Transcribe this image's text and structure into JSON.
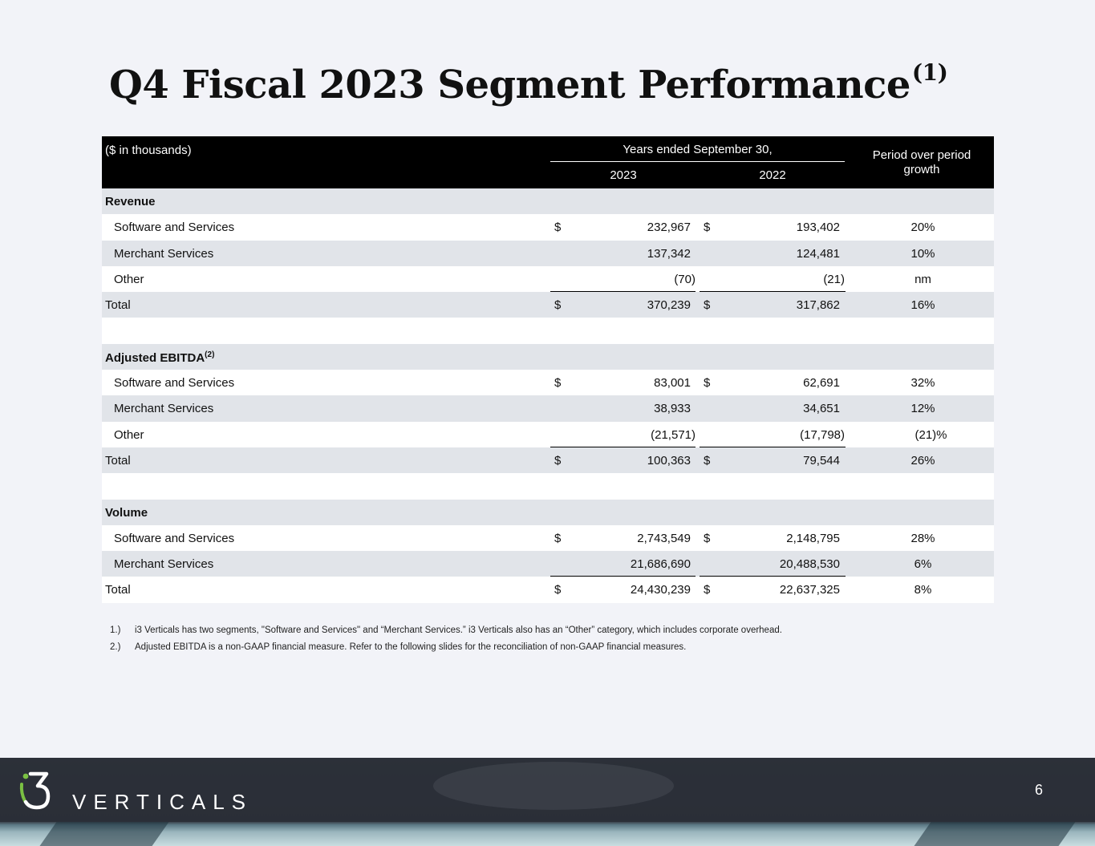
{
  "title": {
    "text": "Q4 Fiscal 2023 Segment Performance",
    "note_ref": "(1)"
  },
  "table": {
    "header": {
      "units": "($ in thousands)",
      "years_caption": "Years ended September 30,",
      "year_2023": "2023",
      "year_2022": "2022",
      "growth_line1": "Period over period",
      "growth_line2": "growth"
    },
    "revenue": {
      "heading": "Revenue",
      "software": {
        "label": "Software and Services",
        "cur": "$",
        "v2023": "232,967",
        "v2022": "193,402",
        "growth": "20%"
      },
      "merchant": {
        "label": "Merchant Services",
        "v2023": "137,342",
        "v2022": "124,481",
        "growth": "10%"
      },
      "other": {
        "label": "Other",
        "v2023": "(70)",
        "v2022": "(21)",
        "growth": "nm"
      },
      "total": {
        "label": "Total",
        "cur": "$",
        "v2023": "370,239",
        "v2022": "317,862",
        "growth": "16%"
      }
    },
    "ebitda": {
      "heading": "Adjusted EBITDA",
      "note_ref": "(2)",
      "software": {
        "label": "Software and Services",
        "cur": "$",
        "v2023": "83,001",
        "v2022": "62,691",
        "growth": "32%"
      },
      "merchant": {
        "label": "Merchant Services",
        "v2023": "38,933",
        "v2022": "34,651",
        "growth": "12%"
      },
      "other": {
        "label": "Other",
        "v2023": "(21,571)",
        "v2022": "(17,798)",
        "growth": "(21)%"
      },
      "total": {
        "label": "Total",
        "cur": "$",
        "v2023": "100,363",
        "v2022": "79,544",
        "growth": "26%"
      }
    },
    "volume": {
      "heading": "Volume",
      "software": {
        "label": "Software and Services",
        "cur": "$",
        "v2023": "2,743,549",
        "v2022": "2,148,795",
        "growth": "28%"
      },
      "merchant": {
        "label": "Merchant Services",
        "v2023": "21,686,690",
        "v2022": "20,488,530",
        "growth": "6%"
      },
      "total": {
        "label": "Total",
        "cur": "$",
        "v2023": "24,430,239",
        "v2022": "22,637,325",
        "growth": "8%"
      }
    }
  },
  "footnotes": [
    {
      "num": "1.)",
      "text": "i3 Verticals has two segments, \"Software and Services\" and “Merchant Services.” i3 Verticals also has an “Other” category, which includes corporate overhead."
    },
    {
      "num": "2.)",
      "text": "Adjusted EBITDA is a non-GAAP financial measure. Refer to the following slides for the reconciliation of non-GAAP financial measures."
    }
  ],
  "footer": {
    "brand": "VERTICALS",
    "page_number": "6"
  }
}
